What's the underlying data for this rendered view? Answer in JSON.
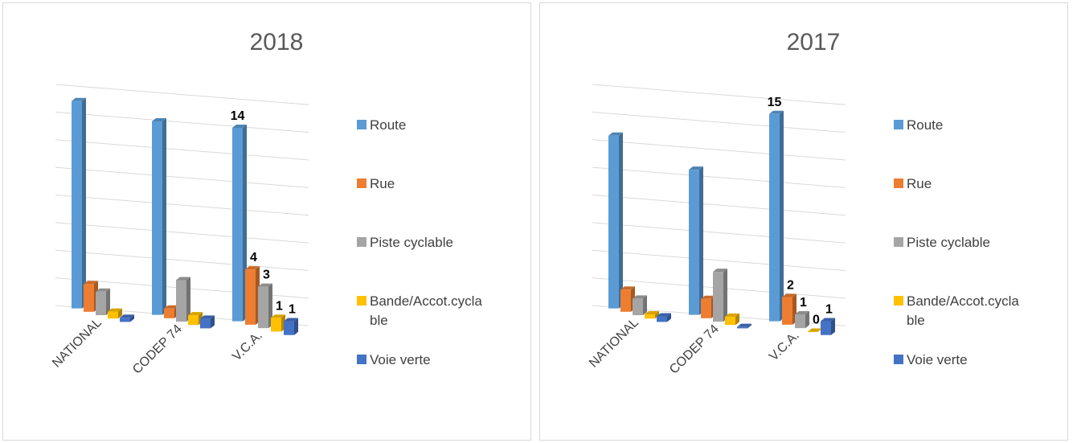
{
  "chart_data": [
    {
      "type": "bar3d",
      "title": "2018",
      "categories": [
        "NATIONAL",
        "CODEP 74",
        "V.C.A."
      ],
      "ylim": [
        0,
        16
      ],
      "yticks": [
        0,
        2,
        4,
        6,
        8,
        10,
        12,
        14,
        16
      ],
      "grid": true,
      "series": [
        {
          "name": "Route",
          "color": "#5b9bd5",
          "values": [
            15,
            14,
            14
          ],
          "value_labels": [
            null,
            null,
            "14"
          ]
        },
        {
          "name": "Rue",
          "color": "#ed7d31",
          "values": [
            2,
            0.7,
            4
          ],
          "value_labels": [
            null,
            null,
            "4"
          ]
        },
        {
          "name": "Piste cyclable",
          "color": "#a5a5a5",
          "values": [
            1.7,
            3,
            3
          ],
          "value_labels": [
            null,
            null,
            "3"
          ]
        },
        {
          "name": "Bande/Accot.cyclable",
          "color": "#ffc000",
          "values": [
            0.5,
            0.7,
            1
          ],
          "value_labels": [
            null,
            null,
            "1"
          ]
        },
        {
          "name": "Voie verte",
          "color": "#4472c4",
          "values": [
            0.3,
            0.7,
            1
          ],
          "value_labels": [
            null,
            null,
            "1"
          ]
        }
      ]
    },
    {
      "type": "bar3d",
      "title": "2017",
      "categories": [
        "NATIONAL",
        "CODEP 74",
        "V.C.A."
      ],
      "ylim": [
        0,
        16
      ],
      "yticks": [
        0,
        2,
        4,
        6,
        8,
        10,
        12,
        14,
        16
      ],
      "grid": true,
      "series": [
        {
          "name": "Route",
          "color": "#5b9bd5",
          "values": [
            12.5,
            10.5,
            15
          ],
          "value_labels": [
            null,
            null,
            "15"
          ]
        },
        {
          "name": "Rue",
          "color": "#ed7d31",
          "values": [
            1.6,
            1.4,
            2
          ],
          "value_labels": [
            null,
            null,
            "2"
          ]
        },
        {
          "name": "Piste cyclable",
          "color": "#a5a5a5",
          "values": [
            1.2,
            3.6,
            1
          ],
          "value_labels": [
            null,
            null,
            "1"
          ]
        },
        {
          "name": "Bande/Accot.cyclable",
          "color": "#ffc000",
          "values": [
            0.3,
            0.6,
            0
          ],
          "value_labels": [
            null,
            null,
            "0"
          ]
        },
        {
          "name": "Voie verte",
          "color": "#4472c4",
          "values": [
            0.4,
            0.1,
            1
          ],
          "value_labels": [
            null,
            null,
            "1"
          ]
        }
      ]
    }
  ]
}
